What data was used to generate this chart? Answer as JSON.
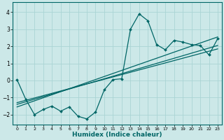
{
  "xlabel": "Humidex (Indice chaleur)",
  "ylabel": "",
  "bg_color": "#cce8e8",
  "grid_color": "#aad4d4",
  "line_color": "#006666",
  "xlim": [
    -0.5,
    23.5
  ],
  "ylim": [
    -2.6,
    4.6
  ],
  "xticks": [
    0,
    1,
    2,
    3,
    4,
    5,
    6,
    7,
    8,
    9,
    10,
    11,
    12,
    13,
    14,
    15,
    16,
    17,
    18,
    19,
    20,
    21,
    22,
    23
  ],
  "yticks": [
    -2,
    -1,
    0,
    1,
    2,
    3,
    4
  ],
  "series": [
    [
      0,
      0.05
    ],
    [
      1,
      -1.1
    ],
    [
      2,
      -2.0
    ],
    [
      3,
      -1.7
    ],
    [
      4,
      -1.5
    ],
    [
      5,
      -1.8
    ],
    [
      6,
      -1.55
    ],
    [
      7,
      -2.1
    ],
    [
      8,
      -2.25
    ],
    [
      9,
      -1.85
    ],
    [
      10,
      -0.55
    ],
    [
      11,
      0.05
    ],
    [
      12,
      0.1
    ],
    [
      13,
      3.0
    ],
    [
      14,
      3.9
    ],
    [
      15,
      3.5
    ],
    [
      16,
      2.1
    ],
    [
      17,
      1.8
    ],
    [
      18,
      2.35
    ],
    [
      19,
      2.25
    ],
    [
      20,
      2.1
    ],
    [
      21,
      2.05
    ],
    [
      22,
      1.5
    ],
    [
      23,
      2.45
    ]
  ],
  "linear_series": [
    [
      0,
      -1.55
    ],
    [
      23,
      2.55
    ]
  ],
  "linear_series2": [
    [
      0,
      -1.4
    ],
    [
      23,
      2.05
    ]
  ],
  "linear_series3": [
    [
      0,
      -1.3
    ],
    [
      23,
      1.85
    ]
  ]
}
